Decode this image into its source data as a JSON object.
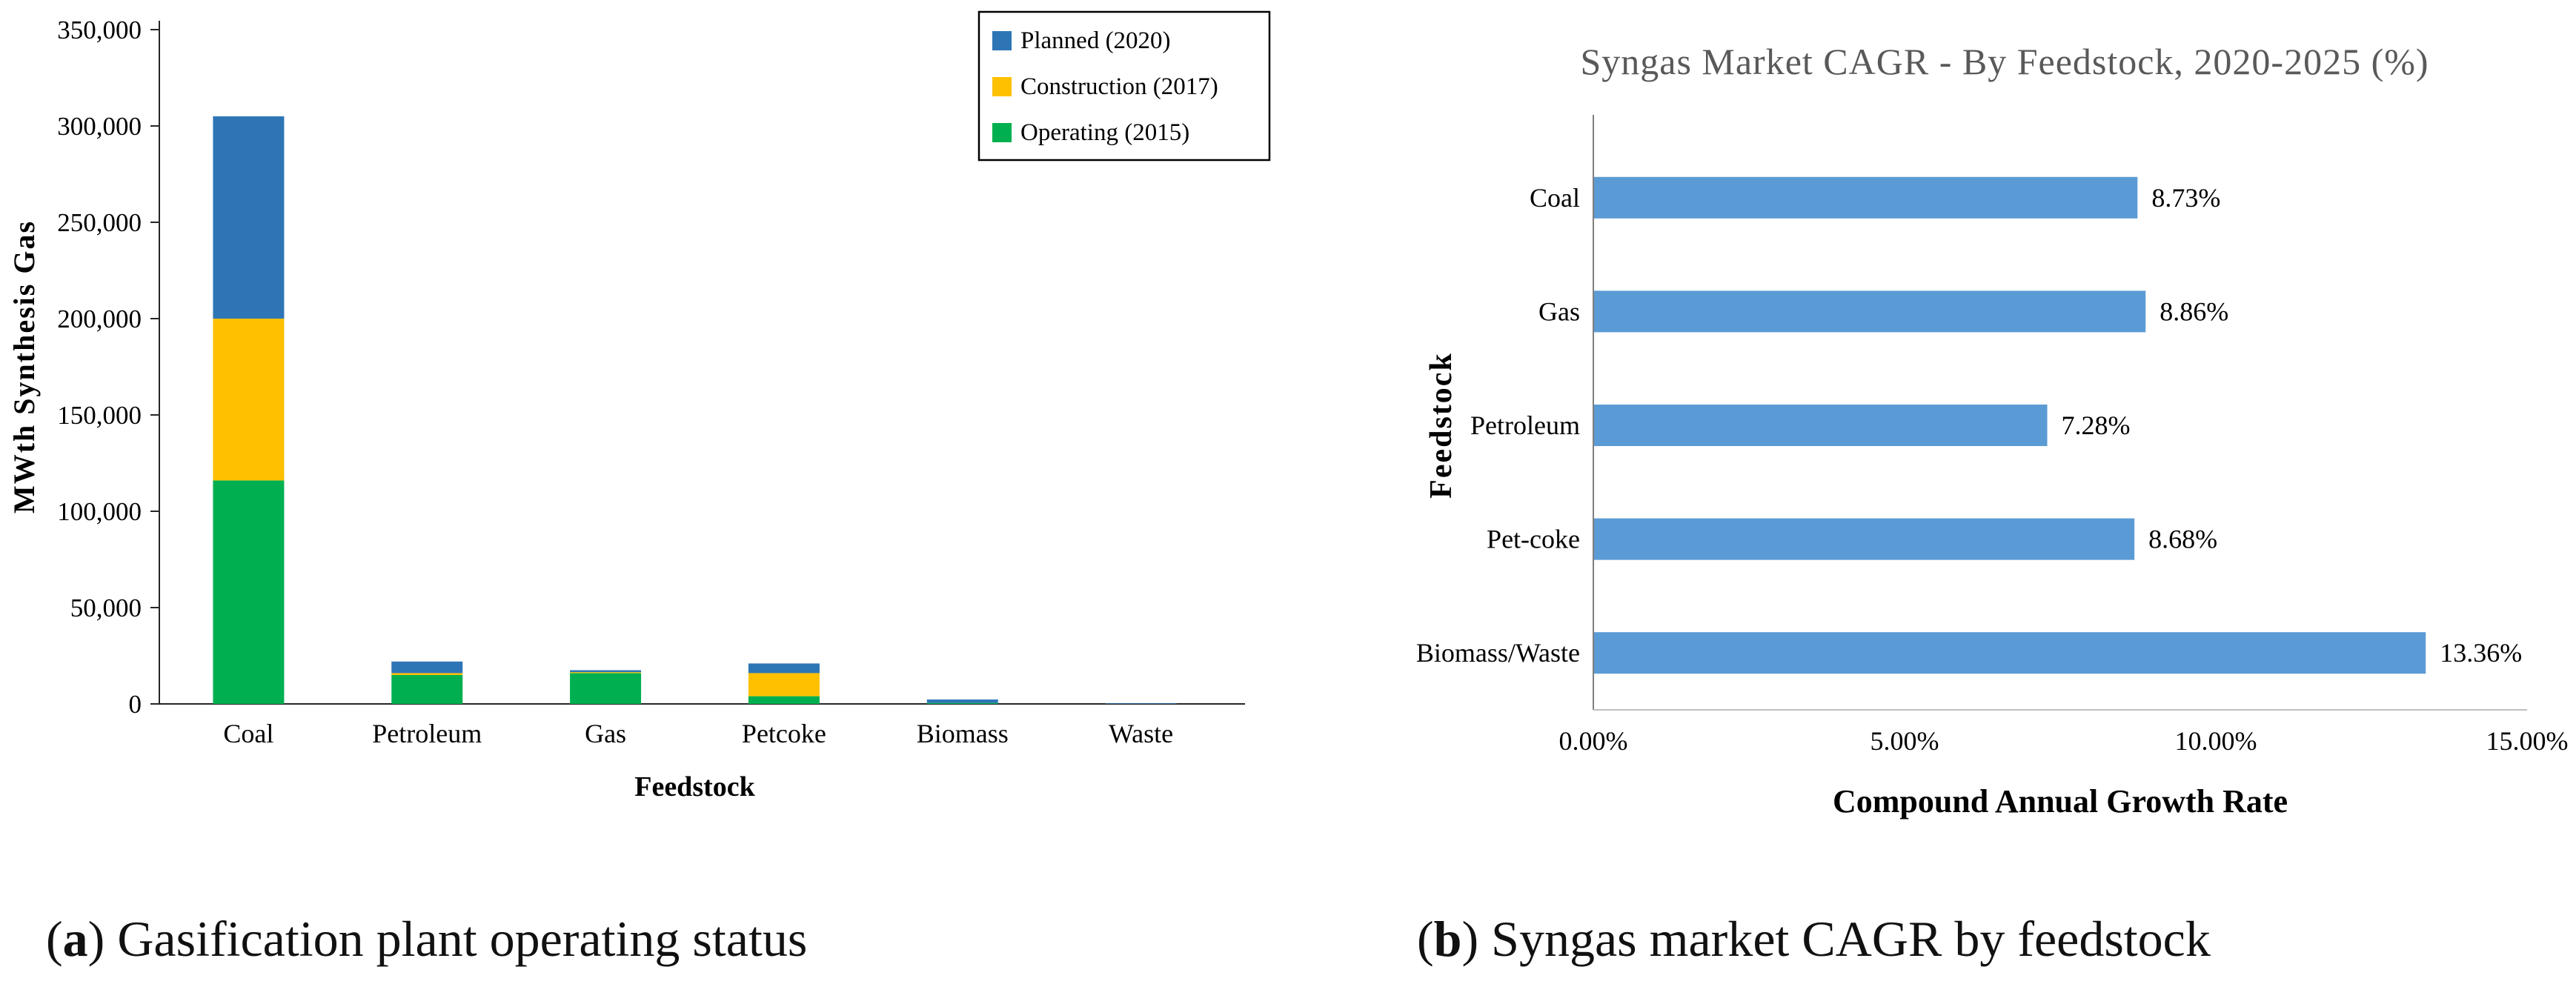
{
  "captions": {
    "a": {
      "open": "(",
      "label": "a",
      "close": ")",
      "text": " Gasification plant operating status"
    },
    "b": {
      "open": "(",
      "label": "b",
      "close": ")",
      "text": " Syngas market CAGR by feedstock"
    }
  },
  "chart_data": [
    {
      "id": "gasification-status",
      "type": "bar",
      "stacked": true,
      "title": "",
      "categories": [
        "Coal",
        "Petroleum",
        "Gas",
        "Petcoke",
        "Biomass",
        "Waste"
      ],
      "series": [
        {
          "name": "Operating (2015)",
          "color": "#00B050",
          "values": [
            116000,
            15000,
            16000,
            4000,
            500,
            0
          ]
        },
        {
          "name": "Construction (2017)",
          "color": "#FFC000",
          "values": [
            84000,
            1000,
            500,
            12000,
            0,
            0
          ]
        },
        {
          "name": "Planned (2020)",
          "color": "#2E75B6",
          "values": [
            105000,
            6000,
            1000,
            5000,
            1800,
            300
          ]
        }
      ],
      "legend_order": [
        "Planned (2020)",
        "Construction (2017)",
        "Operating (2015)"
      ],
      "legend_position": "top-right",
      "xlabel": "Feedstock",
      "ylabel": "MWth Synthesis Gas",
      "ylim": [
        0,
        350000
      ],
      "yticks": [
        0,
        50000,
        100000,
        150000,
        200000,
        250000,
        300000,
        350000
      ],
      "ytick_labels": [
        "0",
        "50,000",
        "100,000",
        "150,000",
        "200,000",
        "250,000",
        "300,000",
        "350,000"
      ],
      "grid": false
    },
    {
      "id": "syngas-cagr",
      "type": "bar",
      "orientation": "horizontal",
      "title": "Syngas Market CAGR - By Feedstock, 2020-2025 (%)",
      "categories": [
        "Coal",
        "Gas",
        "Petroleum",
        "Pet-coke",
        "Biomass/Waste"
      ],
      "values": [
        8.73,
        8.86,
        7.28,
        8.68,
        13.36
      ],
      "value_labels": [
        "8.73%",
        "8.86%",
        "7.28%",
        "8.68%",
        "13.36%"
      ],
      "bar_color": "#5B9BD5",
      "title_color": "#595959",
      "xlabel": "Compound Annual Growth Rate",
      "ylabel": "Feedstock",
      "xlim": [
        0,
        15
      ],
      "xticks": [
        0,
        5,
        10,
        15
      ],
      "xtick_labels": [
        "0.00%",
        "5.00%",
        "10.00%",
        "15.00%"
      ],
      "grid": false
    }
  ]
}
